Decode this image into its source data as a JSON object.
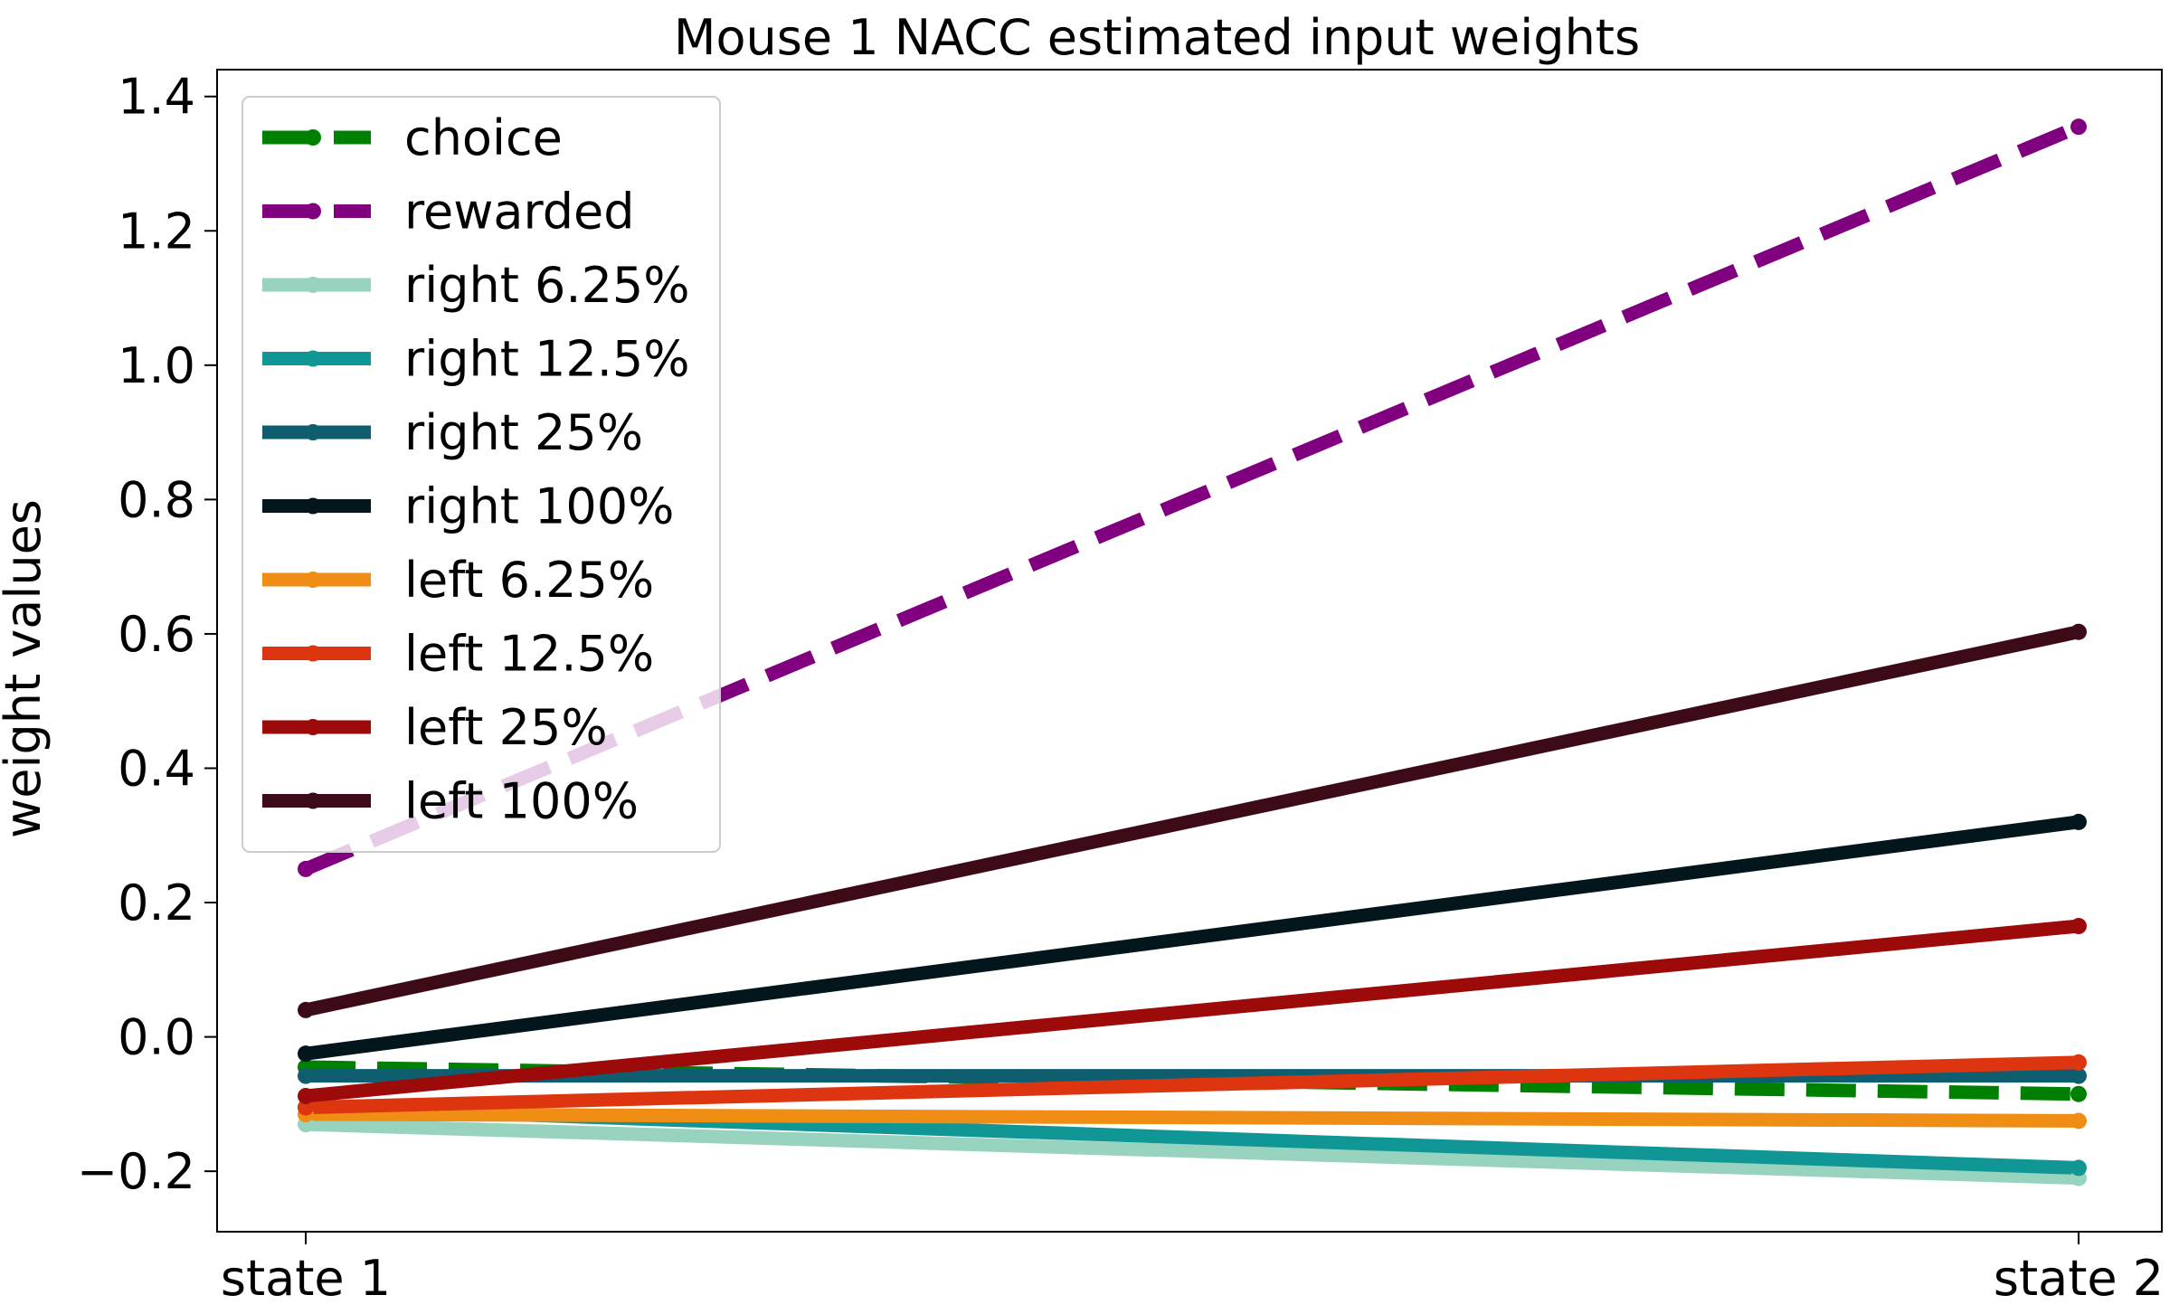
{
  "chart_data": {
    "type": "line",
    "title": "Mouse 1 NACC estimated input weights",
    "xlabel": "",
    "ylabel": "weight values",
    "categories": [
      "state 1",
      "state 2"
    ],
    "ylim": [
      -0.29,
      1.44
    ],
    "yticks": [
      -0.2,
      0.0,
      0.2,
      0.4,
      0.6,
      0.8,
      1.0,
      1.2,
      1.4
    ],
    "ytick_labels": [
      "−0.2",
      "0.0",
      "0.2",
      "0.4",
      "0.6",
      "0.8",
      "1.0",
      "1.2",
      "1.4"
    ],
    "grid": false,
    "legend_position": "top-left",
    "series": [
      {
        "name": "choice",
        "values": [
          -0.045,
          -0.085
        ],
        "color": "#008000",
        "dashed": true
      },
      {
        "name": "rewarded",
        "values": [
          0.25,
          1.355
        ],
        "color": "#800080",
        "dashed": true
      },
      {
        "name": "right 6.25%",
        "values": [
          -0.13,
          -0.21
        ],
        "color": "#97d3be",
        "dashed": false
      },
      {
        "name": "right 12.5%",
        "values": [
          -0.105,
          -0.195
        ],
        "color": "#119696",
        "dashed": false
      },
      {
        "name": "right 25%",
        "values": [
          -0.058,
          -0.058
        ],
        "color": "#0e5e70",
        "dashed": false
      },
      {
        "name": "right 100%",
        "values": [
          -0.025,
          0.32
        ],
        "color": "#03161c",
        "dashed": false
      },
      {
        "name": "left 6.25%",
        "values": [
          -0.115,
          -0.125
        ],
        "color": "#f08d14",
        "dashed": false
      },
      {
        "name": "left 12.5%",
        "values": [
          -0.105,
          -0.038
        ],
        "color": "#dd3510",
        "dashed": false
      },
      {
        "name": "left 25%",
        "values": [
          -0.088,
          0.165
        ],
        "color": "#9c0a0a",
        "dashed": false
      },
      {
        "name": "left 100%",
        "values": [
          0.04,
          0.603
        ],
        "color": "#3d0b18",
        "dashed": false
      }
    ]
  }
}
